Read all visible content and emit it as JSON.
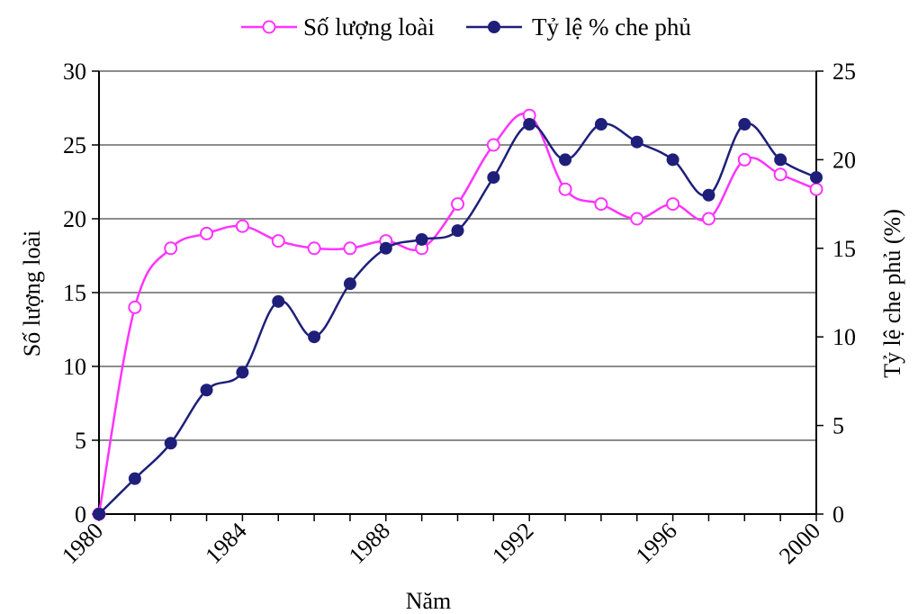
{
  "chart_data": {
    "type": "line",
    "title": "",
    "xlabel": "Năm",
    "ylabel_left": "Số lượng loài",
    "ylabel_right": "Tỷ lệ che phủ (%)",
    "x_ticks": [
      "1980",
      "1984",
      "1988",
      "1992",
      "1996",
      "2000"
    ],
    "xlim": [
      1980,
      2000
    ],
    "ylim_left": [
      0,
      30
    ],
    "ylim_right": [
      0,
      25
    ],
    "y_ticks_left": [
      "0",
      "5",
      "10",
      "15",
      "20",
      "25",
      "30"
    ],
    "y_ticks_right": [
      "0",
      "5",
      "10",
      "15",
      "20",
      "25"
    ],
    "grid": "horizontal",
    "legend_position": "top",
    "x": [
      1980,
      1981,
      1982,
      1983,
      1984,
      1985,
      1986,
      1987,
      1988,
      1989,
      1990,
      1991,
      1992,
      1993,
      1994,
      1995,
      1996,
      1997,
      1998,
      1999,
      2000
    ],
    "series": [
      {
        "name": "Số lượng loài",
        "axis": "left",
        "color": "#ff33ff",
        "marker": "open-circle",
        "values": [
          0,
          14,
          18,
          19,
          19.5,
          18.5,
          18,
          18,
          18.5,
          18,
          21,
          25,
          27,
          22,
          21,
          20,
          21,
          20,
          24,
          23,
          22
        ]
      },
      {
        "name": "Tỷ lệ % che phủ",
        "axis": "right",
        "color": "#1f1f7a",
        "marker": "filled-circle",
        "values": [
          0,
          2,
          4,
          7,
          8,
          12,
          10,
          13,
          15,
          15.5,
          16,
          19,
          22,
          20,
          22,
          21,
          20,
          18,
          22,
          20,
          19
        ]
      }
    ]
  }
}
